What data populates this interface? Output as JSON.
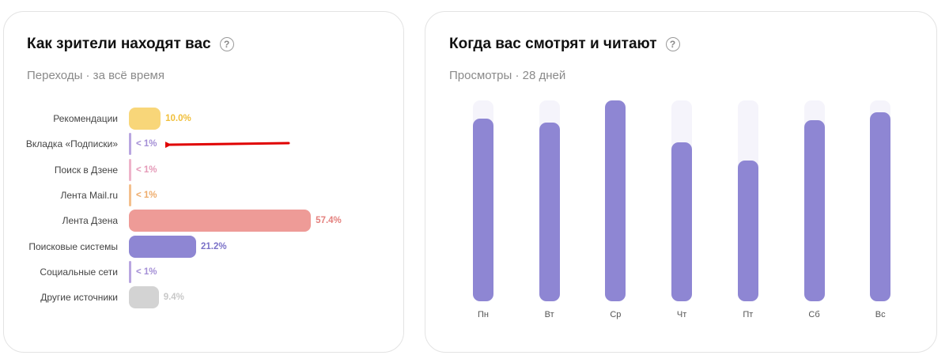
{
  "left_card": {
    "title": "Как зрители находят вас",
    "help_icon": "question-circle-icon",
    "subtitle": "Переходы · за всё время"
  },
  "right_card": {
    "title": "Когда вас смотрят и читают",
    "help_icon": "question-circle-icon",
    "subtitle": "Просмотры · 28 дней"
  },
  "annotation": {
    "type": "red-arrow",
    "color": "#e00000",
    "points_to": "Вкладка «Подписки»"
  },
  "chart_data": [
    {
      "type": "bar",
      "orientation": "horizontal",
      "categories": [
        "Рекомендации",
        "Вкладка «Подписки»",
        "Поиск в Дзене",
        "Лента Mail.ru",
        "Лента Дзена",
        "Поисковые системы",
        "Социальные сети",
        "Другие источники"
      ],
      "values": [
        10.0,
        0.5,
        0.5,
        0.5,
        57.4,
        21.2,
        0.5,
        9.4
      ],
      "value_labels": [
        "10.0%",
        "< 1%",
        "< 1%",
        "< 1%",
        "57.4%",
        "21.2%",
        "< 1%",
        "9.4%"
      ],
      "colors": [
        "#f8d679",
        "#b9a6e0",
        "#eeb4ca",
        "#f4c08d",
        "#ee9b97",
        "#8e86d3",
        "#b9a6e0",
        "#d3d3d3"
      ],
      "label_colors": [
        "#f0bf3a",
        "#a48fd6",
        "#e59ab8",
        "#eeac6c",
        "#e4807d",
        "#7b72c8",
        "#a48fd6",
        "#c8c8c8"
      ],
      "unit": "%",
      "grid": false,
      "legend": "none"
    },
    {
      "type": "bar",
      "orientation": "vertical",
      "categories": [
        "Пн",
        "Вт",
        "Ср",
        "Чт",
        "Пт",
        "Сб",
        "Вс"
      ],
      "values": [
        91,
        89,
        100,
        79,
        70,
        90,
        94
      ],
      "max": 100,
      "color": "#8e86d3",
      "track_color": "#f5f4fb",
      "grid": false,
      "legend": "none"
    }
  ]
}
